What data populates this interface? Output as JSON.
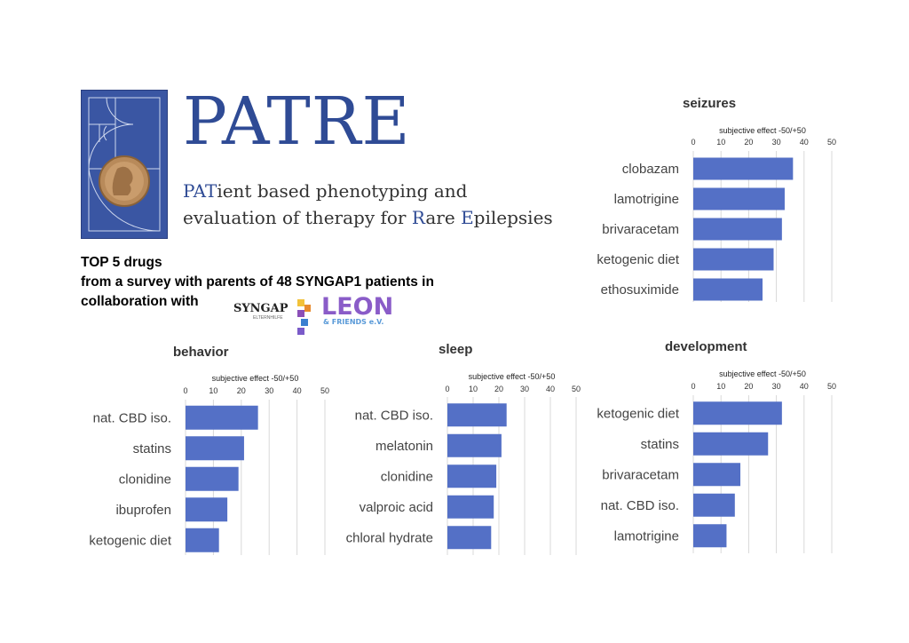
{
  "brand": {
    "title": "PATRE",
    "subtitle_line1_parts": [
      "PAT",
      "ient based phenotyping and"
    ],
    "subtitle_line2_parts": [
      "evaluation of therapy for ",
      "R",
      "are ",
      "E",
      "pilepsies"
    ]
  },
  "intro": {
    "line1": "TOP 5 drugs",
    "line2": "from a survey with parents of 48 SYNGAP1 patients in",
    "line3": "collaboration with"
  },
  "partners": {
    "syngap": {
      "name": "SYNGAP",
      "sub": "ELTERNHILFE"
    },
    "leon": {
      "name": "LEON",
      "sub": "& FRIENDS e.V."
    }
  },
  "colors": {
    "bar": "#5470c6",
    "brand": "#2f4b95",
    "grid": "#d9d9d9"
  },
  "chart_data": [
    {
      "type": "bar",
      "orientation": "horizontal",
      "title": "seizures",
      "xlabel": "subjective effect -50/+50",
      "xlim": [
        0,
        50
      ],
      "ticks": [
        0,
        10,
        20,
        30,
        40,
        50
      ],
      "categories": [
        "clobazam",
        "lamotrigine",
        "brivaracetam",
        "ketogenic diet",
        "ethosuximide"
      ],
      "values": [
        36,
        33,
        32,
        29,
        25
      ]
    },
    {
      "type": "bar",
      "orientation": "horizontal",
      "title": "behavior",
      "xlabel": "subjective effect -50/+50",
      "xlim": [
        0,
        50
      ],
      "ticks": [
        0,
        10,
        20,
        30,
        40,
        50
      ],
      "categories": [
        "nat. CBD iso.",
        "statins",
        "clonidine",
        "ibuprofen",
        "ketogenic diet"
      ],
      "values": [
        26,
        21,
        19,
        15,
        12
      ]
    },
    {
      "type": "bar",
      "orientation": "horizontal",
      "title": "sleep",
      "xlabel": "subjective effect -50/+50",
      "xlim": [
        0,
        50
      ],
      "ticks": [
        0,
        10,
        20,
        30,
        40,
        50
      ],
      "categories": [
        "nat. CBD iso.",
        "melatonin",
        "clonidine",
        "valproic acid",
        "chloral hydrate"
      ],
      "values": [
        23,
        21,
        19,
        18,
        17
      ]
    },
    {
      "type": "bar",
      "orientation": "horizontal",
      "title": "development",
      "xlabel": "subjective effect -50/+50",
      "xlim": [
        0,
        50
      ],
      "ticks": [
        0,
        10,
        20,
        30,
        40,
        50
      ],
      "categories": [
        "ketogenic diet",
        "statins",
        "brivaracetam",
        "nat. CBD iso.",
        "lamotrigine"
      ],
      "values": [
        32,
        27,
        17,
        15,
        12
      ]
    }
  ]
}
